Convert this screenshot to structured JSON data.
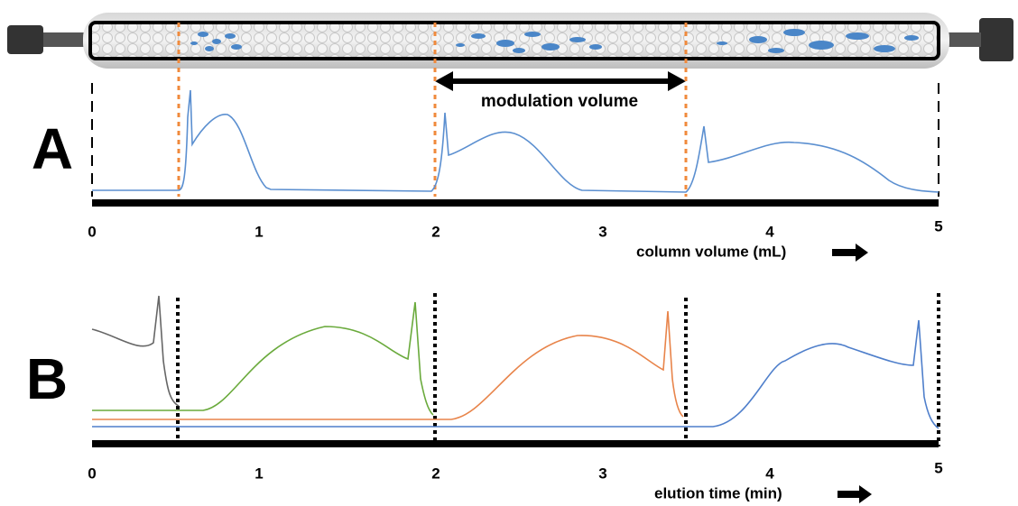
{
  "column": {
    "modulation_label": "modulation volume"
  },
  "panel_a": {
    "label": "A",
    "ticks": [
      "0",
      "1",
      "2",
      "3",
      "4",
      "5"
    ],
    "axis_label": "column volume (mL)"
  },
  "panel_b": {
    "label": "B",
    "ticks": [
      "0",
      "1",
      "2",
      "3",
      "4",
      "5"
    ],
    "axis_label": "elution time (min)"
  }
}
